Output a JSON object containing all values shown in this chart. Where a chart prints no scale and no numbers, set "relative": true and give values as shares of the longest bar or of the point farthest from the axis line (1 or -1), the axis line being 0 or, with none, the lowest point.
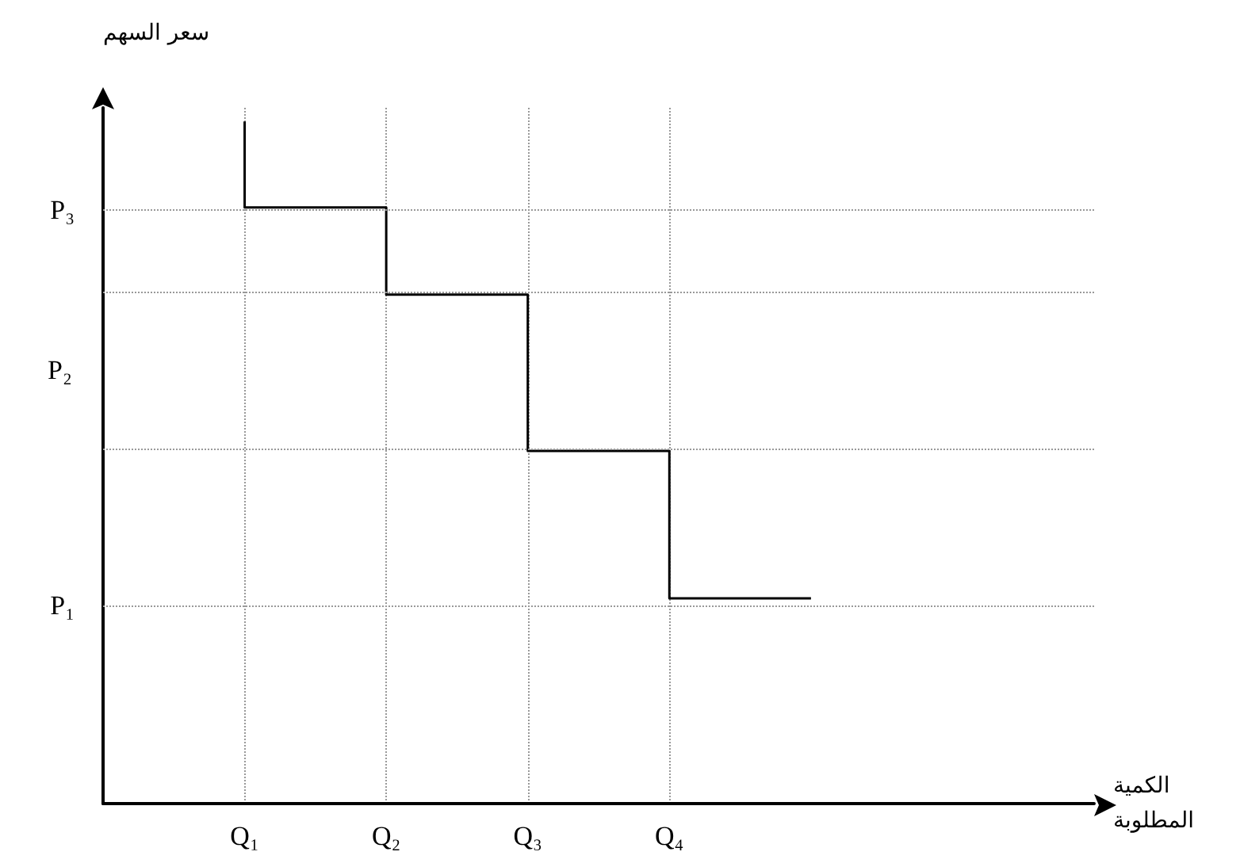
{
  "chart_data": {
    "type": "step",
    "xlabel": "الكمية\nالمطلوبة",
    "ylabel": "سعر السهم",
    "categories": [
      null,
      "Q₁",
      "Q₂",
      "Q₃",
      "Q₄",
      null,
      null,
      null
    ],
    "values": [
      null,
      1.0,
      0.874,
      0.746,
      0.517,
      0.301,
      null,
      null
    ],
    "color": "#000000",
    "relative": true,
    "ref_lines": [
      {
        "axis": "y",
        "value": 0.874,
        "label": "P₃",
        "color": "#999999",
        "line_style": "dotted"
      },
      {
        "axis": "y",
        "value": 0.746,
        "label": null,
        "color": "#999999",
        "line_style": "dotted"
      },
      {
        "axis": "y",
        "value": 0.517,
        "label": null,
        "color": "#999999",
        "line_style": "dotted"
      },
      {
        "axis": "y",
        "value": 0.29,
        "label": "P₁",
        "color": "#999999",
        "line_style": "dotted"
      }
    ],
    "annotations": [
      "P₂"
    ],
    "grid": "x"
  }
}
